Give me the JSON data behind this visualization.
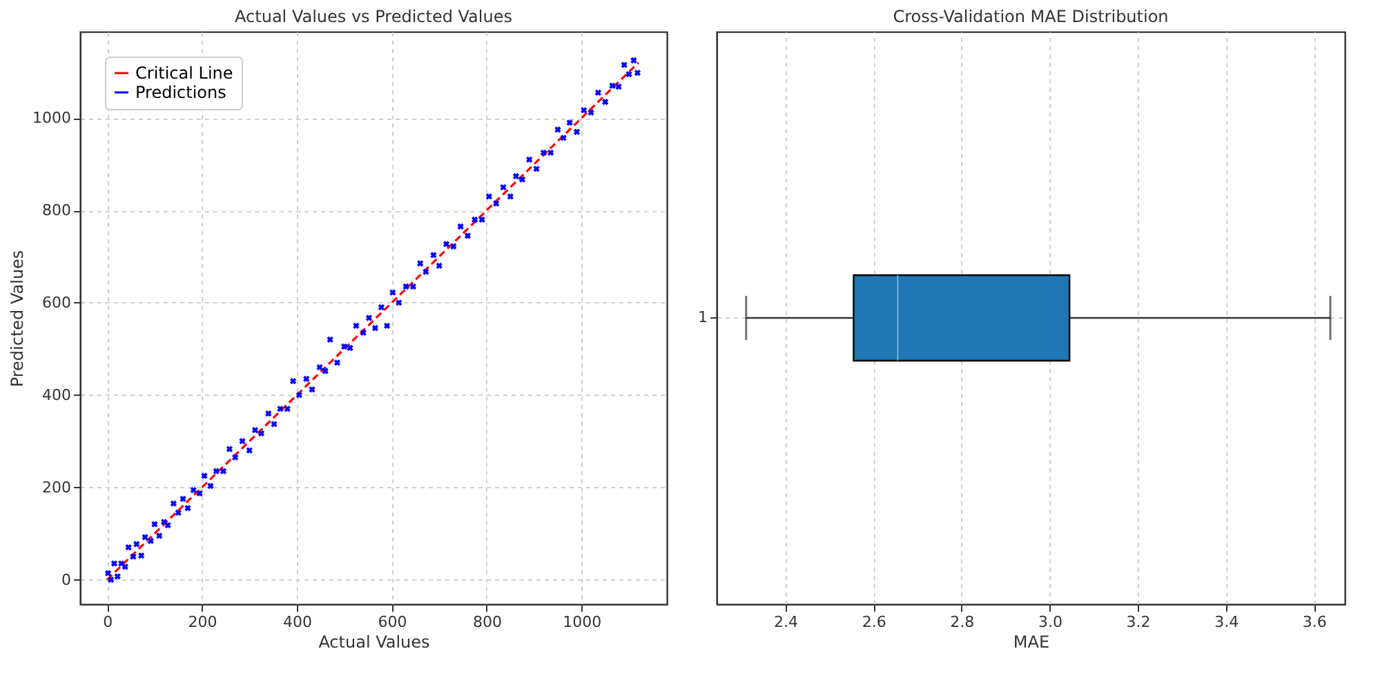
{
  "chart_data": [
    {
      "type": "scatter",
      "title": "Actual Values vs Predicted Values",
      "xlabel": "Actual Values",
      "ylabel": "Predicted Values",
      "xlim": [
        -57,
        1180
      ],
      "ylim": [
        -53,
        1187
      ],
      "xticks": [
        0,
        200,
        400,
        600,
        800,
        1000
      ],
      "yticks": [
        0,
        200,
        400,
        600,
        800,
        1000
      ],
      "grid": true,
      "legend": "top left",
      "series": [
        {
          "name": "Critical Line",
          "type": "line",
          "color": "#ff0000",
          "line_style": "dashed",
          "x": [
            0,
            1120
          ],
          "values": [
            0,
            1120
          ]
        },
        {
          "name": "Predictions",
          "type": "scatter",
          "color": "#0000ff",
          "marker": "cross",
          "x": [
            2,
            8,
            15,
            22,
            30,
            38,
            45,
            55,
            62,
            72,
            80,
            92,
            100,
            110,
            120,
            128,
            140,
            150,
            160,
            170,
            182,
            195,
            205,
            218,
            230,
            245,
            258,
            270,
            285,
            300,
            312,
            325,
            340,
            352,
            365,
            380,
            392,
            405,
            420,
            432,
            448,
            460,
            470,
            485,
            500,
            512,
            525,
            540,
            552,
            565,
            578,
            590,
            602,
            615,
            630,
            645,
            660,
            672,
            688,
            700,
            715,
            730,
            745,
            760,
            775,
            790,
            805,
            820,
            835,
            850,
            862,
            875,
            890,
            905,
            920,
            935,
            950,
            962,
            975,
            990,
            1005,
            1020,
            1035,
            1050,
            1065,
            1078,
            1090,
            1100,
            1110,
            1118
          ],
          "values": [
            14,
            0,
            35,
            7,
            35,
            28,
            70,
            50,
            77,
            52,
            92,
            84,
            120,
            95,
            125,
            118,
            165,
            145,
            175,
            155,
            194,
            187,
            225,
            203,
            235,
            235,
            283,
            265,
            300,
            280,
            324,
            317,
            360,
            337,
            370,
            370,
            430,
            400,
            435,
            412,
            460,
            452,
            520,
            470,
            505,
            502,
            550,
            535,
            567,
            545,
            590,
            550,
            622,
            600,
            635,
            635,
            685,
            667,
            703,
            680,
            727,
            722,
            765,
            745,
            780,
            780,
            830,
            815,
            850,
            830,
            874,
            867,
            910,
            890,
            925,
            925,
            975,
            957,
            990,
            970,
            1017,
            1012,
            1055,
            1035,
            1070,
            1068,
            1115,
            1095,
            1125,
            1098
          ]
        }
      ]
    },
    {
      "type": "box",
      "title": "Cross-Validation MAE Distribution",
      "xlabel": "MAE",
      "orientation": "horizontal",
      "categories": [
        "1"
      ],
      "xlim": [
        2.244,
        3.67
      ],
      "xticks": [
        2.4,
        2.6,
        2.8,
        {
          "value": 3,
          "label": "3.0"
        },
        3.2,
        3.4,
        3.6
      ],
      "grid": true,
      "series": [
        {
          "color": "#1f77b4",
          "boxes": [
            {
              "low": 2.311,
              "q1": 2.555,
              "median": 2.655,
              "q3": 3.045,
              "high": 3.637
            }
          ]
        }
      ]
    }
  ]
}
